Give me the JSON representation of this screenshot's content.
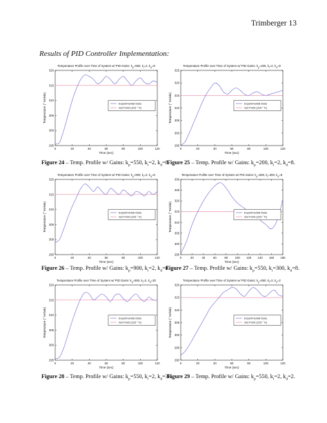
{
  "header": {
    "text": "Trimberger 13"
  },
  "section_title": "Results of PID Controller Implementation:",
  "chart_data": [
    {
      "type": "line",
      "title": "Temperature Profile over Time of System w/ PID Gains: k",
      "title_gains": [
        {
          "sub": "p",
          "value": "=550, k"
        },
        {
          "sub": "i",
          "value": "=2, k"
        },
        {
          "sub": "d",
          "value": "=8"
        }
      ],
      "xlabel": "Time (sec)",
      "ylabel": "Temperature (° Kelvin)",
      "xlim": [
        0,
        120
      ],
      "ylim": [
        295,
        320
      ],
      "xticks": [
        0,
        20,
        40,
        60,
        80,
        100,
        120
      ],
      "yticks": [
        295,
        300,
        305,
        310,
        315,
        320
      ],
      "legend": [
        "Experimental Data",
        "Set Point (315 ° K)"
      ],
      "setpoint": 315,
      "series": [
        {
          "x": [
            0,
            5,
            10,
            15,
            20,
            25,
            30,
            35,
            40,
            45,
            50,
            55,
            60,
            65,
            70,
            75,
            80,
            85,
            90,
            95,
            100,
            105,
            110,
            115,
            120
          ],
          "values": [
            295.5,
            296,
            300,
            305,
            310,
            314,
            317,
            318.5,
            318,
            317,
            315.5,
            316.5,
            318,
            317,
            315.5,
            317,
            318,
            316.5,
            315,
            316.5,
            317.5,
            316,
            315.5,
            316.5,
            316
          ]
        }
      ]
    },
    {
      "type": "line",
      "title": "Temperature Profile over Time of System w/ PID Gains: k",
      "title_gains": [
        {
          "sub": "p",
          "value": "=200, k"
        },
        {
          "sub": "i",
          "value": "=2, k"
        },
        {
          "sub": "d",
          "value": "=8"
        }
      ],
      "xlabel": "Time (sec)",
      "ylabel": "Temperature (° Kelvin)",
      "xlim": [
        0,
        120
      ],
      "ylim": [
        295,
        325
      ],
      "xticks": [
        0,
        20,
        40,
        60,
        80,
        100,
        120
      ],
      "yticks": [
        295,
        300,
        305,
        310,
        315,
        320,
        325
      ],
      "legend": [
        "Experimental Data",
        "Set Point (315 ° K)"
      ],
      "setpoint": 315,
      "series": [
        {
          "x": [
            0,
            5,
            10,
            15,
            20,
            25,
            30,
            35,
            40,
            45,
            50,
            55,
            60,
            65,
            70,
            75,
            80,
            85,
            90,
            95,
            100,
            105,
            110,
            115,
            120
          ],
          "values": [
            295,
            296.5,
            300,
            304,
            308,
            312,
            315.5,
            318,
            320,
            319,
            316.5,
            315.5,
            317,
            318,
            317,
            315.5,
            315,
            316,
            316.5,
            315.5,
            315,
            315.5,
            316,
            316.5,
            317
          ]
        }
      ]
    },
    {
      "type": "line",
      "title": "Temperature Profile over Time of System w/ PID Gains: k",
      "title_gains": [
        {
          "sub": "p",
          "value": "=900, k"
        },
        {
          "sub": "i",
          "value": "=2, k"
        },
        {
          "sub": "d",
          "value": "=8"
        }
      ],
      "xlabel": "Time (sec)",
      "ylabel": "Temperature (° Kelvin)",
      "xlim": [
        0,
        120
      ],
      "ylim": [
        295,
        320
      ],
      "xticks": [
        0,
        20,
        40,
        60,
        80,
        100,
        120
      ],
      "yticks": [
        295,
        300,
        305,
        310,
        315,
        320
      ],
      "legend": [
        "Experimental Data",
        "Set Point (315 ° K)"
      ],
      "setpoint": 315,
      "series": [
        {
          "x": [
            0,
            5,
            10,
            15,
            20,
            25,
            30,
            35,
            40,
            45,
            50,
            55,
            60,
            65,
            70,
            75,
            80,
            85,
            90,
            95,
            100,
            105,
            110,
            115,
            120
          ],
          "values": [
            299,
            300,
            303.5,
            307.5,
            311,
            314,
            317,
            318.5,
            317.5,
            316,
            317.5,
            316,
            315,
            317,
            316,
            315,
            316.5,
            315.5,
            314.5,
            316,
            315.5,
            314.5,
            316,
            315,
            316
          ]
        }
      ]
    },
    {
      "type": "line",
      "title": "Temperature Profile over Time of System w/ PID Gains: k",
      "title_gains": [
        {
          "sub": "p",
          "value": "=550, k"
        },
        {
          "sub": "i",
          "value": "=300, k"
        },
        {
          "sub": "d",
          "value": "=8"
        }
      ],
      "xlabel": "Time (sec)",
      "ylabel": "Temperature (° Kelvin)",
      "xlim": [
        0,
        180
      ],
      "ylim": [
        295,
        330
      ],
      "xticks": [
        0,
        20,
        40,
        60,
        80,
        100,
        120,
        140,
        160,
        180
      ],
      "yticks": [
        295,
        300,
        305,
        310,
        315,
        320,
        325,
        330
      ],
      "legend": [
        "Experimental Data",
        "Set Point (315 ° K)"
      ],
      "setpoint": 315,
      "series": [
        {
          "x": [
            0,
            10,
            20,
            30,
            40,
            50,
            60,
            70,
            80,
            90,
            100,
            110,
            120,
            130,
            140,
            150,
            160,
            170,
            180
          ],
          "values": [
            295.5,
            301,
            309,
            315,
            320,
            324,
            327,
            328.5,
            326,
            322,
            319,
            317,
            315,
            313,
            311,
            309,
            307,
            311,
            320.5
          ]
        }
      ]
    },
    {
      "type": "line",
      "title": "Temperature Profile over Time of System w/ PID Gains: k",
      "title_gains": [
        {
          "sub": "p",
          "value": "=550, k"
        },
        {
          "sub": "i",
          "value": "=2, k"
        },
        {
          "sub": "d",
          "value": "=30"
        }
      ],
      "xlabel": "Time (sec)",
      "ylabel": "Temperature (° Kelvin)",
      "xlim": [
        0,
        120
      ],
      "ylim": [
        295,
        320
      ],
      "xticks": [
        0,
        20,
        40,
        60,
        80,
        100,
        120
      ],
      "yticks": [
        295,
        300,
        305,
        310,
        315,
        320
      ],
      "legend": [
        "Experimental Data",
        "Set Point (315 ° K)"
      ],
      "setpoint": 315,
      "series": [
        {
          "x": [
            0,
            5,
            10,
            15,
            20,
            25,
            30,
            35,
            40,
            45,
            50,
            55,
            60,
            65,
            70,
            75,
            80,
            85,
            90,
            95,
            100,
            105,
            110,
            115,
            120
          ],
          "values": [
            295.5,
            296,
            299,
            303.5,
            308,
            312,
            315.5,
            317.5,
            317,
            315,
            316,
            317,
            316,
            314.5,
            316.5,
            317,
            315.5,
            314.5,
            316,
            317,
            315.5,
            314.5,
            316,
            315,
            315
          ]
        }
      ]
    },
    {
      "type": "line",
      "title": "Temperature Profile over Time of System w/ PID Gains: k",
      "title_gains": [
        {
          "sub": "p",
          "value": "=550, k"
        },
        {
          "sub": "i",
          "value": "=2, k"
        },
        {
          "sub": "d",
          "value": "=2"
        }
      ],
      "xlabel": "Time (sec)",
      "ylabel": "Temperature (° Kelvin)",
      "xlim": [
        0,
        120
      ],
      "ylim": [
        290,
        320
      ],
      "xticks": [
        0,
        20,
        40,
        60,
        80,
        100,
        120
      ],
      "yticks": [
        290,
        295,
        300,
        305,
        310,
        315,
        320
      ],
      "legend": [
        "Experimental Data",
        "Set Point (315 ° K)"
      ],
      "setpoint": 315,
      "series": [
        {
          "x": [
            0,
            5,
            10,
            15,
            20,
            25,
            30,
            35,
            40,
            45,
            50,
            55,
            60,
            65,
            70,
            75,
            80,
            85,
            90,
            95,
            100,
            105,
            110,
            115,
            120
          ],
          "values": [
            292,
            293.5,
            296,
            299,
            302,
            305,
            308,
            311,
            313,
            315,
            317,
            318,
            319,
            318.5,
            316.5,
            315.5,
            317.5,
            319,
            318,
            316,
            315.5,
            317,
            318,
            316,
            315.5
          ]
        }
      ]
    }
  ],
  "captions": [
    {
      "label": "Figure 24",
      "text": " – Temp. Profile w/ Gains: k",
      "gains": [
        {
          "sub": "p",
          "value": "=550, k"
        },
        {
          "sub": "i",
          "value": "=2, k"
        },
        {
          "sub": "d",
          "value": "=8."
        }
      ]
    },
    {
      "label": "Figure 25",
      "text": " – Temp. Profile w/ Gains: k",
      "gains": [
        {
          "sub": "p",
          "value": "=200, k"
        },
        {
          "sub": "i",
          "value": "=2, k"
        },
        {
          "sub": "d",
          "value": "=8."
        }
      ]
    },
    {
      "label": "Figure 26",
      "text": " – Temp. Profile w/ Gains: k",
      "gains": [
        {
          "sub": "p",
          "value": "=900, k"
        },
        {
          "sub": "i",
          "value": "=2, k"
        },
        {
          "sub": "d",
          "value": "=8."
        }
      ]
    },
    {
      "label": "Figure 27",
      "text": " – Temp. Profile w/ Gains: k",
      "gains": [
        {
          "sub": "p",
          "value": "=550, k"
        },
        {
          "sub": "i",
          "value": "=300, k"
        },
        {
          "sub": "d",
          "value": "=8."
        }
      ]
    },
    {
      "label": "Figure 28",
      "text": " – Temp. Profile w/ Gains: k",
      "gains": [
        {
          "sub": "p",
          "value": "=550, k"
        },
        {
          "sub": "i",
          "value": "=2, k"
        },
        {
          "sub": "d",
          "value": "=30."
        }
      ]
    },
    {
      "label": "Figure 29",
      "text": " – Temp. Profile w/ Gains: k",
      "gains": [
        {
          "sub": "p",
          "value": "=550, k"
        },
        {
          "sub": "i",
          "value": "=2, k"
        },
        {
          "sub": "d",
          "value": "=2."
        }
      ]
    }
  ],
  "colors": {
    "experimental": "#7a78d6",
    "setpoint": "#e88aa0",
    "axis": "#222222"
  }
}
